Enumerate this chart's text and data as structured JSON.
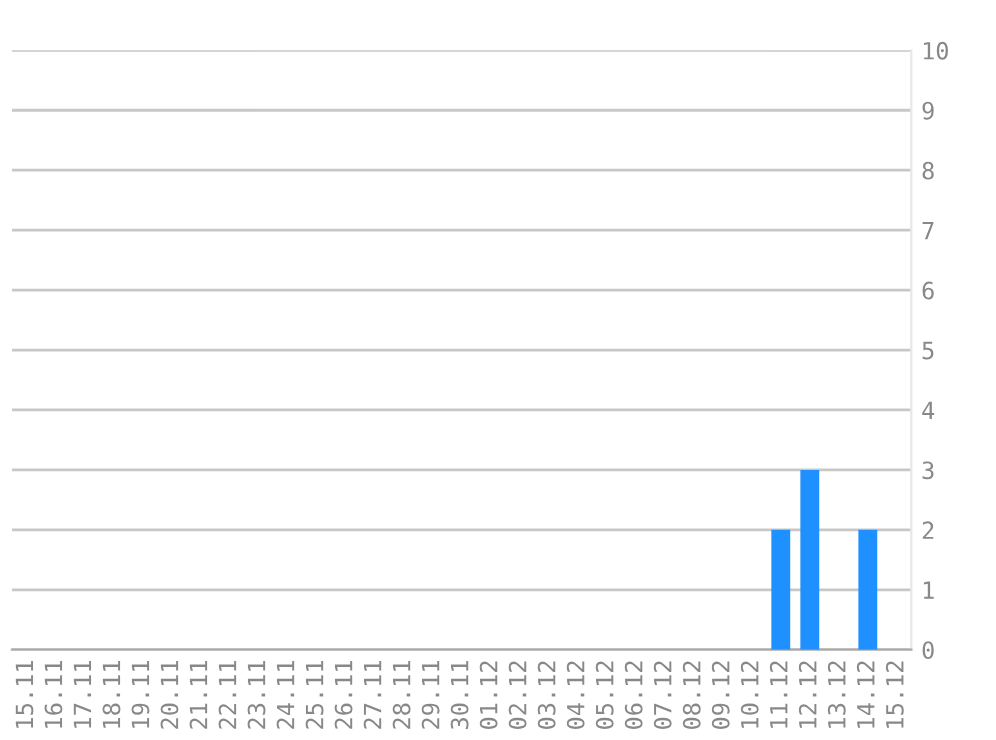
{
  "chart_data": {
    "type": "bar",
    "categories": [
      "15.11",
      "16.11",
      "17.11",
      "18.11",
      "19.11",
      "20.11",
      "21.11",
      "22.11",
      "23.11",
      "24.11",
      "25.11",
      "26.11",
      "27.11",
      "28.11",
      "29.11",
      "30.11",
      "01.12",
      "02.12",
      "03.12",
      "04.12",
      "05.12",
      "06.12",
      "07.12",
      "08.12",
      "09.12",
      "10.12",
      "11.12",
      "12.12",
      "13.12",
      "14.12",
      "15.12"
    ],
    "values": [
      0,
      0,
      0,
      0,
      0,
      0,
      0,
      0,
      0,
      0,
      0,
      0,
      0,
      0,
      0,
      0,
      0,
      0,
      0,
      0,
      0,
      0,
      0,
      0,
      0,
      0,
      2,
      3,
      0,
      2,
      0
    ],
    "color": "#1e90ff",
    "ylim": [
      0,
      10
    ],
    "yticks": [
      0,
      1,
      2,
      3,
      4,
      5,
      6,
      7,
      8,
      9,
      10
    ],
    "grid": "y"
  }
}
